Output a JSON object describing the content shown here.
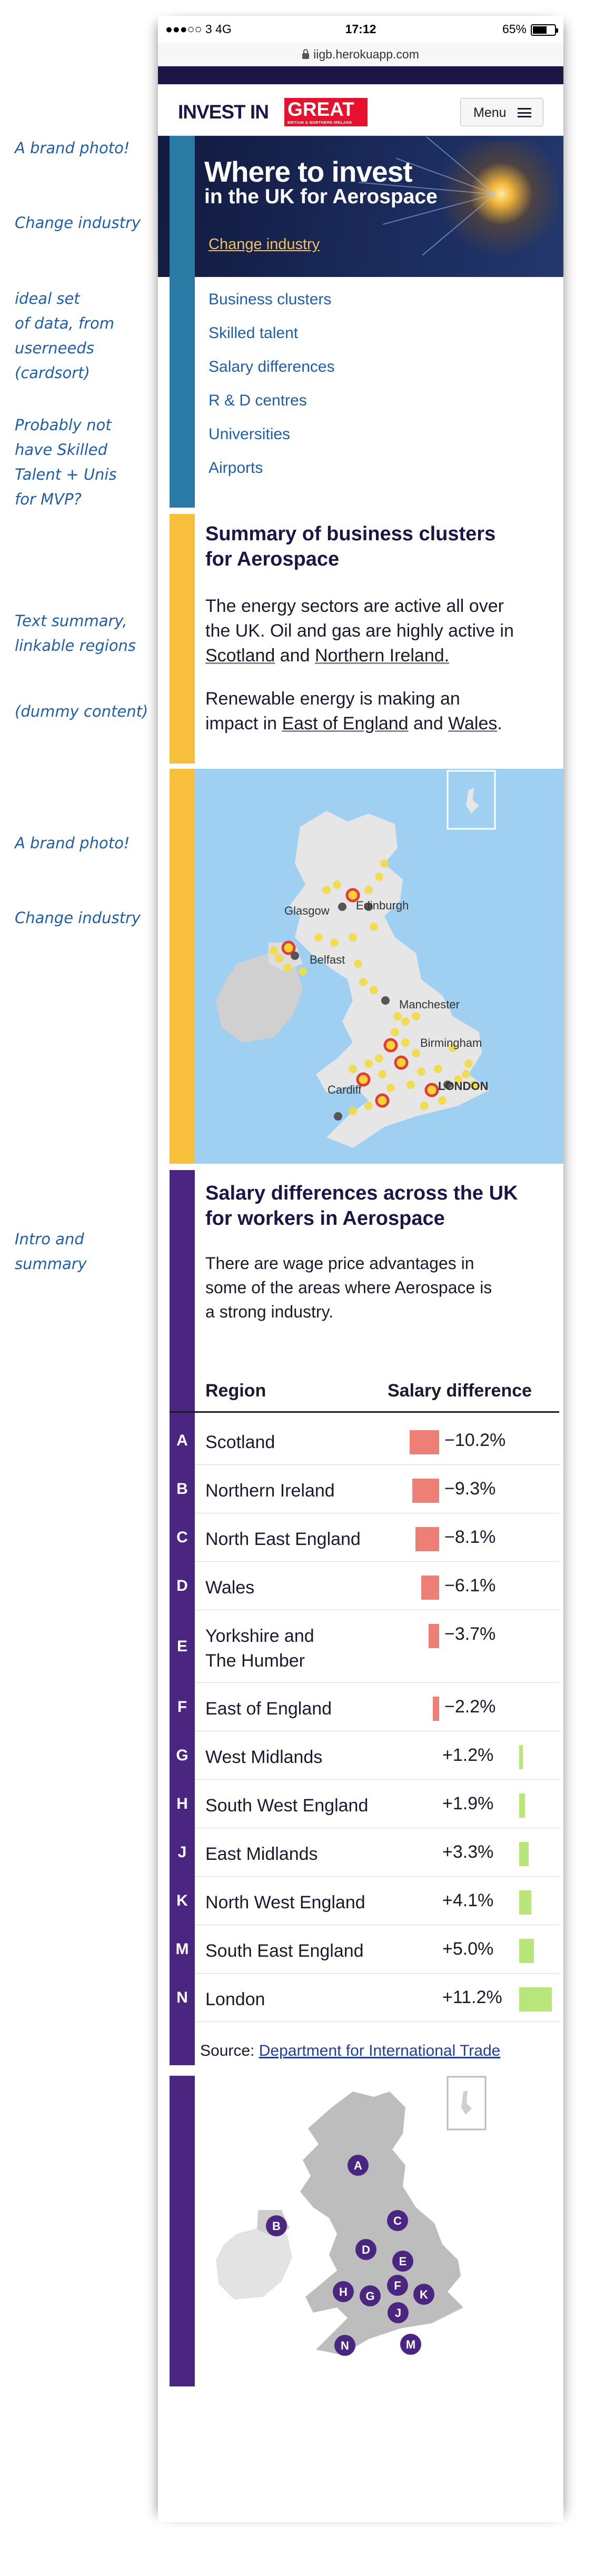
{
  "annotations": [
    {
      "text": "A brand photo!"
    },
    {
      "text": "Change industry"
    },
    {
      "text": "ideal set\nof data, from\nuserneeds\n(cardsort)"
    },
    {
      "text": "Probably not\nhave Skilled\nTalent + Unis\nfor MVP?"
    },
    {
      "text": "Text summary,\nlinkable regions"
    },
    {
      "text": "(dummy content)"
    },
    {
      "text": "A brand photo!"
    },
    {
      "text": "Change industry"
    },
    {
      "text": "Intro and\nsummary"
    }
  ],
  "status_bar": {
    "carrier": "●●●○○ 3   4G",
    "time": "17:12",
    "battery": "65%",
    "battery_fraction": 0.65
  },
  "url_bar": {
    "url": "iigb.herokuapp.com"
  },
  "header": {
    "logo_text": "INVEST IN",
    "logo_great": "GREAT",
    "logo_sub": "BRITAIN & NORTHERN IRELAND",
    "menu_label": "Menu"
  },
  "hero": {
    "title": "Where to invest",
    "subtitle": "in the UK for Aerospace",
    "change_link": "Change industry"
  },
  "nav": {
    "items": [
      "Business clusters",
      "Skilled talent",
      "Salary differences",
      "R & D centres",
      "Universities",
      "Airports"
    ]
  },
  "summary": {
    "title_line1": "Summary of business clusters",
    "title_line2": "for Aerospace",
    "p1": [
      "The energy sectors are active all over",
      "the UK. Oil and gas are highly active in",
      "Scotland",
      " and ",
      "Northern Ireland."
    ],
    "p2": [
      "Renewable energy is making an",
      "impact in ",
      "East of England",
      " and ",
      "Wales",
      "."
    ]
  },
  "cluster_map": {
    "labels": [
      "Glasgow",
      "Edinburgh",
      "Belfast",
      "Manchester",
      "Birmingham",
      "Cardiff",
      "LONDON"
    ]
  },
  "salary": {
    "title_line1": "Salary differences across the UK",
    "title_line2": "for workers in Aerospace",
    "intro": [
      "There are wage price advantages in",
      "some of the areas where Aerospace is",
      "a strong industry."
    ],
    "col_region": "Region",
    "col_diff": "Salary difference",
    "negative_color": "#ee7f76",
    "positive_color": "#b9e67a",
    "rows": [
      {
        "letter": "A",
        "name": "Scotland",
        "value": "−10.2%",
        "num": -10.2
      },
      {
        "letter": "B",
        "name": "Northern Ireland",
        "value": "−9.3%",
        "num": -9.3
      },
      {
        "letter": "C",
        "name": "North East England",
        "value": "−8.1%",
        "num": -8.1
      },
      {
        "letter": "D",
        "name": "Wales",
        "value": "−6.1%",
        "num": -6.1
      },
      {
        "letter": "E",
        "name": "Yorkshire and\nThe Humber",
        "value": "−3.7%",
        "num": -3.7
      },
      {
        "letter": "F",
        "name": "East of England",
        "value": "−2.2%",
        "num": -2.2
      },
      {
        "letter": "G",
        "name": "West Midlands",
        "value": "+1.2%",
        "num": 1.2
      },
      {
        "letter": "H",
        "name": "South West England",
        "value": "+1.9%",
        "num": 1.9
      },
      {
        "letter": "J",
        "name": "East Midlands",
        "value": "+3.3%",
        "num": 3.3
      },
      {
        "letter": "K",
        "name": "North West England",
        "value": "+4.1%",
        "num": 4.1
      },
      {
        "letter": "M",
        "name": "South East England",
        "value": "+5.0%",
        "num": 5.0
      },
      {
        "letter": "N",
        "name": "London",
        "value": "+11.2%",
        "num": 11.2
      }
    ],
    "source_label": "Source: ",
    "source_link": "Department for International Trade"
  },
  "region_map": {
    "markers": [
      "A",
      "B",
      "C",
      "D",
      "E",
      "F",
      "G",
      "H",
      "J",
      "K",
      "M",
      "N"
    ]
  },
  "colors": {
    "brand_navy": "#1b1646",
    "nav_bar": "#2a7aa6",
    "summary_bar": "#f8bf3d",
    "salary_bar": "#4a2680",
    "link_blue": "#1f5fa8"
  }
}
